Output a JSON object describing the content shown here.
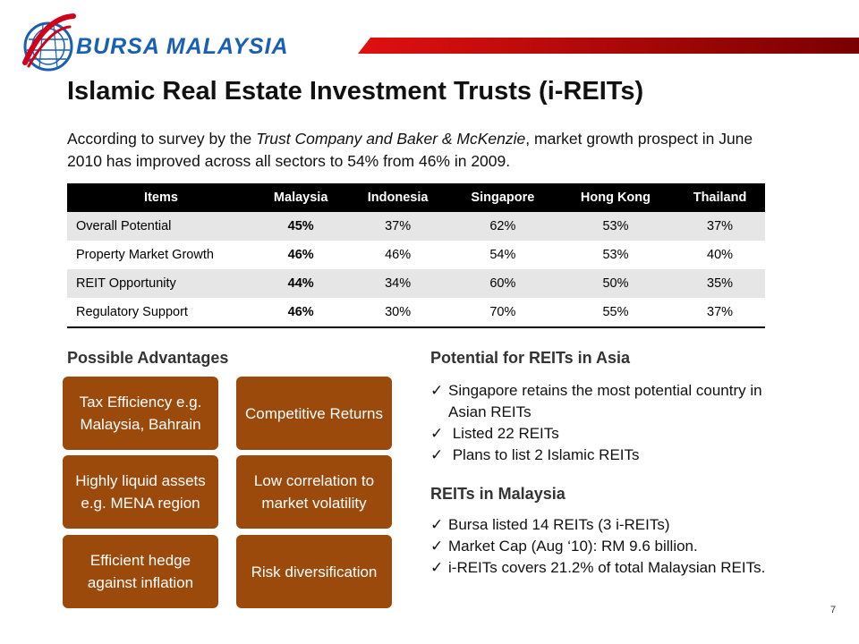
{
  "header": {
    "logo_text": "BURSA MALAYSIA",
    "accent_color": "#c00000"
  },
  "title": "Islamic Real Estate Investment Trusts (i-REITs)",
  "intro": {
    "part1": "According to survey by the ",
    "italic": "Trust Company and Baker & McKenzie",
    "part2": ", market growth prospect in June 2010 has improved across all sectors to 54% from 46% in 2009."
  },
  "table": {
    "headers": [
      "Items",
      "Malaysia",
      "Indonesia",
      "Singapore",
      "Hong Kong",
      "Thailand"
    ],
    "rows": [
      [
        "Overall Potential",
        "45%",
        "37%",
        "62%",
        "53%",
        "37%"
      ],
      [
        "Property Market Growth",
        "46%",
        "46%",
        "54%",
        "53%",
        "40%"
      ],
      [
        "REIT Opportunity",
        "44%",
        "34%",
        "60%",
        "50%",
        "35%"
      ],
      [
        "Regulatory Support",
        "46%",
        "30%",
        "70%",
        "55%",
        "37%"
      ]
    ]
  },
  "advantages": {
    "heading": "Possible Advantages",
    "box_color": "#9b4a0c",
    "items": [
      "Tax Efficiency e.g. Malaysia, Bahrain",
      "Competitive Returns",
      "Highly liquid assets e.g. MENA region",
      "Low correlation to market volatility",
      "Efficient hedge against inflation",
      "Risk diversification"
    ]
  },
  "asia": {
    "heading": "Potential for REITs in Asia",
    "items": [
      "Singapore retains the most potential country in Asian REITs",
      " Listed 22 REITs",
      " Plans to list 2 Islamic REITs"
    ]
  },
  "malaysia": {
    "heading": "REITs in Malaysia",
    "items": [
      "Bursa listed 14 REITs (3 i-REITs)",
      "Market Cap (Aug ‘10): RM 9.6 billion.",
      "i-REITs covers 21.2% of total Malaysian REITs."
    ]
  },
  "page_number": "7"
}
